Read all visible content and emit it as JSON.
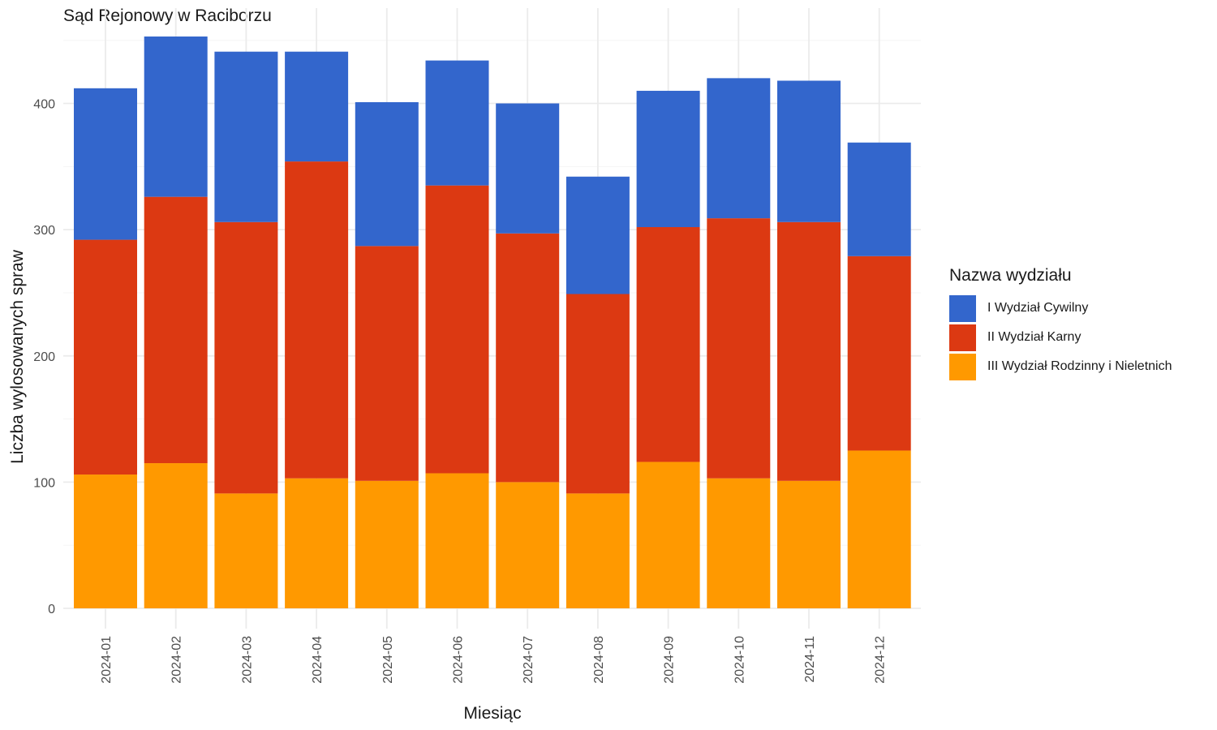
{
  "chart_data": {
    "type": "bar",
    "stacked": true,
    "title": "Sąd Rejonowy w Raciborzu",
    "xlabel": "Miesiąc",
    "ylabel": "Liczba wylosowanych spraw",
    "ylim": [
      0,
      460
    ],
    "yticks": [
      0,
      100,
      200,
      300,
      400
    ],
    "grid": true,
    "legend_title": "Nazwa wydziału",
    "legend_position": "right",
    "categories": [
      "2024-01",
      "2024-02",
      "2024-03",
      "2024-04",
      "2024-05",
      "2024-06",
      "2024-07",
      "2024-08",
      "2024-09",
      "2024-10",
      "2024-11",
      "2024-12"
    ],
    "series": [
      {
        "name": "III Wydział Rodzinny i Nieletnich",
        "color": "#FF9900",
        "values": [
          106,
          115,
          91,
          103,
          101,
          107,
          100,
          91,
          116,
          103,
          101,
          125
        ]
      },
      {
        "name": "II Wydział Karny",
        "color": "#DC3912",
        "values": [
          186,
          211,
          215,
          251,
          186,
          228,
          197,
          158,
          186,
          206,
          205,
          154
        ]
      },
      {
        "name": "I Wydział Cywilny",
        "color": "#3366CC",
        "values": [
          120,
          127,
          135,
          87,
          114,
          99,
          103,
          93,
          108,
          111,
          112,
          90
        ]
      }
    ],
    "legend_order": [
      "I Wydział Cywilny",
      "II Wydział Karny",
      "III Wydział Rodzinny i Nieletnich"
    ]
  }
}
